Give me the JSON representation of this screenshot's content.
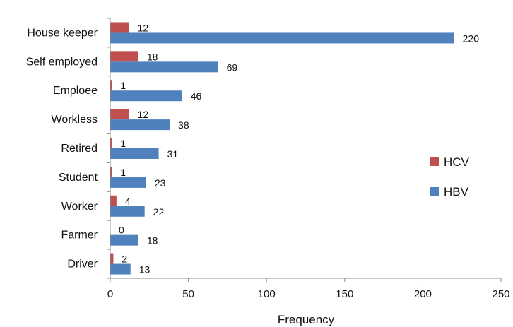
{
  "chart_data": {
    "type": "bar",
    "orientation": "horizontal",
    "categories": [
      "House keeper",
      "Self employed",
      "Emploee",
      "Workless",
      "Retired",
      "Student",
      "Worker",
      "Farmer",
      "Driver"
    ],
    "series": [
      {
        "name": "HCV",
        "color": "#c0504d",
        "values": [
          12,
          18,
          1,
          12,
          1,
          1,
          4,
          0,
          2
        ]
      },
      {
        "name": "HBV",
        "color": "#4f81bd",
        "values": [
          220,
          69,
          46,
          38,
          31,
          23,
          22,
          18,
          13
        ]
      }
    ],
    "xlabel": "Frequency",
    "ylabel": "",
    "xlim": [
      0,
      250
    ],
    "xticks": [
      0,
      50,
      100,
      150,
      200,
      250
    ],
    "grid": false,
    "legend_position": "right"
  }
}
